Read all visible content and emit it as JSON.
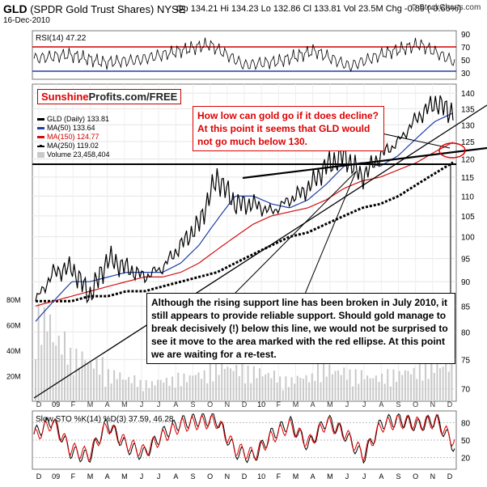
{
  "header": {
    "symbol": "GLD",
    "name": "(SPDR Gold Trust Shares)",
    "exchange": "NYSE",
    "date": "16-Dec-2010",
    "ohlc": "Op 134.21  Hi 134.23  Lo 132.86  Cl 133.81  Vol 23.5M  Chg -0.89 (-0.66%)",
    "credit": "© StockCharts.com"
  },
  "logo": {
    "part1": "Sunshine",
    "part2": "Profits.com/FREE"
  },
  "legend": {
    "gld": "GLD (Daily) 133.81",
    "ma50": "MA(50) 133.64",
    "ma150": "MA(150) 124.77",
    "ma250": "MA(250) 119.02",
    "volume": "Volume 23,458,404"
  },
  "annotations": {
    "top": "How low can gold go if it does decline? At this point it seems that GLD would not go much below 130.",
    "bottom": "Although the rising support line has been broken in July 2010, it still appears to provide reliable support. Should gold manage to break decisively (!) below this line, we would not be surprised to see it move to the area marked with the red ellipse. At this point we are waiting for a re-test."
  },
  "colors": {
    "price": "#000000",
    "ma50": "#1f3fa8",
    "ma150": "#d01010",
    "ma250": "#000000",
    "volume": "#c9c9c9",
    "rsi_line": "#d00000",
    "rsi_lower": "#1f3fa8"
  },
  "chart_data": [
    {
      "type": "line",
      "panel": "rsi",
      "title": "RSI(14) 47.22",
      "y_ticks": [
        30,
        50,
        70,
        90
      ],
      "levels": [
        70,
        30
      ],
      "x": [
        "2009-01",
        "2009-03",
        "2009-05",
        "2009-07",
        "2009-09",
        "2009-11",
        "2010-01",
        "2010-03",
        "2010-05",
        "2010-07",
        "2010-09",
        "2010-11",
        "2010-12-16"
      ],
      "values": [
        52,
        58,
        46,
        50,
        62,
        74,
        42,
        48,
        64,
        40,
        60,
        74,
        47
      ]
    },
    {
      "type": "line",
      "panel": "price",
      "title": "GLD (Daily) 133.81",
      "y_ticks": [
        70,
        75,
        80,
        85,
        90,
        95,
        100,
        105,
        110,
        115,
        120,
        125,
        130,
        135,
        140
      ],
      "y_log": true,
      "ylim": [
        68,
        143
      ],
      "x_ticks": [
        "D",
        "09",
        "F",
        "M",
        "A",
        "M",
        "J",
        "J",
        "A",
        "S",
        "O",
        "N",
        "D",
        "10",
        "F",
        "M",
        "A",
        "M",
        "J",
        "J",
        "A",
        "S",
        "O",
        "N",
        "D"
      ],
      "x": [
        "2009-01",
        "2009-02",
        "2009-03",
        "2009-04",
        "2009-05",
        "2009-06",
        "2009-07",
        "2009-08",
        "2009-09",
        "2009-10",
        "2009-11",
        "2009-12",
        "2010-01",
        "2010-02",
        "2010-03",
        "2010-04",
        "2010-05",
        "2010-06",
        "2010-07",
        "2010-08",
        "2010-09",
        "2010-10",
        "2010-11",
        "2010-12-16"
      ],
      "series": [
        {
          "name": "GLD (Daily) 133.81",
          "values": [
            86,
            92,
            93,
            87,
            95,
            93,
            91,
            93,
            98,
            103,
            115,
            108,
            108,
            106,
            109,
            112,
            118,
            121,
            115,
            121,
            125,
            132,
            137,
            133.81
          ]
        },
        {
          "name": "MA(50) 133.64",
          "values": [
            82,
            86,
            90,
            90,
            91,
            92,
            92,
            92,
            94,
            98,
            104,
            110,
            110,
            108,
            107,
            109,
            113,
            118,
            119,
            118,
            121,
            126,
            131,
            133.64
          ]
        },
        {
          "name": "MA(150) 124.77",
          "values": [
            85,
            86,
            87,
            88,
            89,
            90,
            91,
            91,
            92,
            94,
            97,
            100,
            103,
            105,
            106,
            107,
            109,
            112,
            114,
            115,
            117,
            119,
            122,
            124.77
          ]
        },
        {
          "name": "MA(250) 119.02",
          "values": [
            86,
            86,
            86,
            87,
            87,
            88,
            88,
            89,
            90,
            91,
            92,
            94,
            96,
            98,
            100,
            101,
            103,
            105,
            107,
            108,
            110,
            113,
            116,
            119.02
          ]
        }
      ]
    },
    {
      "type": "bar",
      "panel": "volume",
      "title": "Volume 23,458,404",
      "y_ticks": [
        "20M",
        "40M",
        "60M",
        "80M"
      ],
      "values": [
        55,
        40,
        30,
        25,
        18,
        15,
        12,
        14,
        16,
        18,
        25,
        22,
        20,
        18,
        14,
        16,
        22,
        20,
        18,
        16,
        18,
        20,
        24,
        23.5
      ]
    },
    {
      "type": "line",
      "panel": "stochastic",
      "title": "Slow STO %K(14) %D(3) 37.59, 46.28",
      "y_ticks": [
        20,
        50,
        80
      ],
      "x_ticks": [
        "D",
        "09",
        "F",
        "M",
        "A",
        "M",
        "J",
        "J",
        "A",
        "S",
        "O",
        "N",
        "D",
        "10",
        "F",
        "M",
        "A",
        "M",
        "J",
        "J",
        "A",
        "S",
        "O",
        "N",
        "D"
      ],
      "series": [
        {
          "name": "%K",
          "values": [
            60,
            85,
            30,
            20,
            80,
            40,
            25,
            60,
            80,
            85,
            85,
            30,
            20,
            60,
            80,
            40,
            85,
            60,
            20,
            80,
            85,
            75,
            85,
            37.59
          ]
        },
        {
          "name": "%D",
          "values": [
            55,
            80,
            35,
            25,
            75,
            45,
            30,
            55,
            75,
            80,
            82,
            35,
            25,
            55,
            75,
            45,
            80,
            62,
            25,
            75,
            82,
            78,
            82,
            46.28
          ]
        }
      ]
    }
  ]
}
